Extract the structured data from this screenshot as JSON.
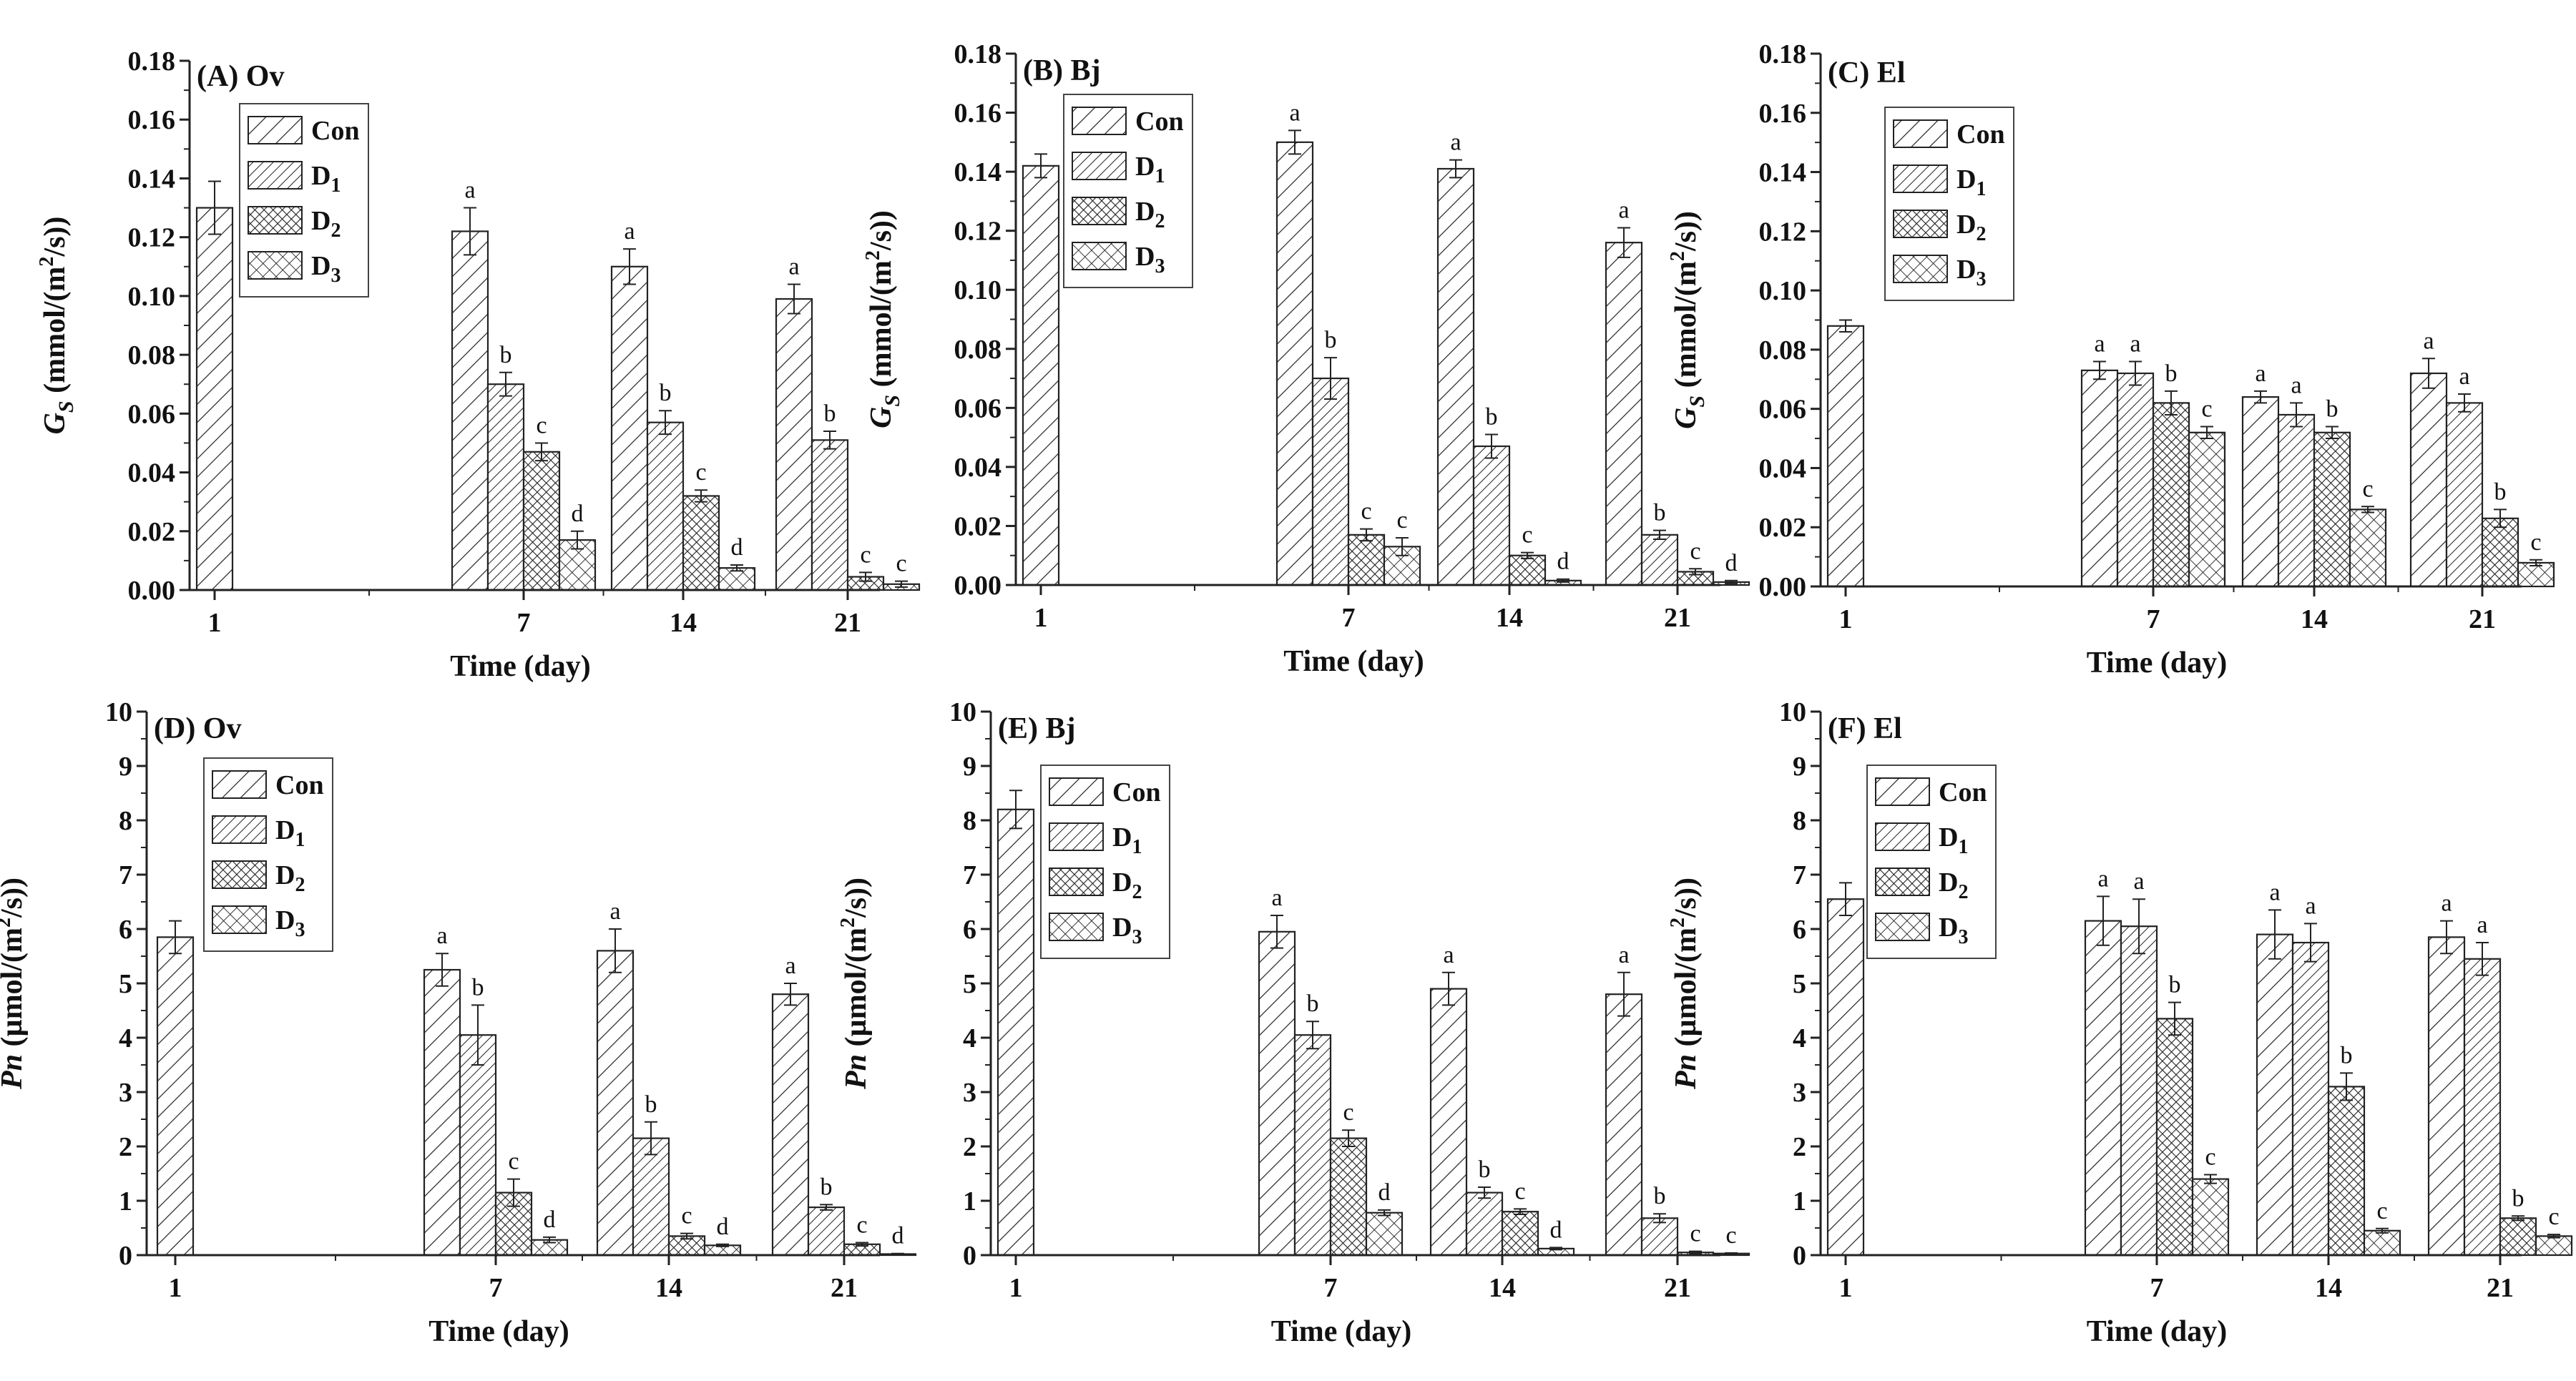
{
  "figure": {
    "x_axis_title": "Time (day)",
    "legend": [
      {
        "label": "Con",
        "pattern": "diag-sparse"
      },
      {
        "label": "D",
        "sub": "1",
        "pattern": "diag-dense"
      },
      {
        "label": "D",
        "sub": "2",
        "pattern": "cross-dense"
      },
      {
        "label": "D",
        "sub": "3",
        "pattern": "cross-sparse"
      }
    ]
  },
  "chart_data": [
    {
      "type": "bar",
      "panel": "(A)",
      "species": "Ov",
      "ylabel_italic": "G",
      "ylabel_sub": "S",
      "ylabel_unit": " (mmol/(m",
      "ylabel_sup": "2",
      "ylabel_tail": "/s))",
      "ylim": [
        0,
        0.18
      ],
      "yticks": [
        "0.00",
        "0.02",
        "0.04",
        "0.06",
        "0.08",
        "0.10",
        "0.12",
        "0.14",
        "0.16",
        "0.18"
      ],
      "categories": [
        "1",
        "7",
        "14",
        "21"
      ],
      "series": [
        {
          "name": "Con",
          "values": [
            0.13,
            0.122,
            0.11,
            0.099
          ],
          "errors": [
            0.009,
            0.008,
            0.006,
            0.005
          ],
          "letters": [
            "",
            "a",
            "a",
            "a"
          ]
        },
        {
          "name": "D1",
          "values": [
            null,
            0.07,
            0.057,
            0.051
          ],
          "errors": [
            null,
            0.004,
            0.004,
            0.003
          ],
          "letters": [
            "",
            "b",
            "b",
            "b"
          ]
        },
        {
          "name": "D2",
          "values": [
            null,
            0.047,
            0.032,
            0.0045
          ],
          "errors": [
            null,
            0.003,
            0.002,
            0.0015
          ],
          "letters": [
            "",
            "c",
            "c",
            "c"
          ]
        },
        {
          "name": "D3",
          "values": [
            null,
            0.017,
            0.0075,
            0.002
          ],
          "errors": [
            null,
            0.003,
            0.001,
            0.001
          ],
          "letters": [
            "",
            "d",
            "d",
            "c"
          ]
        }
      ]
    },
    {
      "type": "bar",
      "panel": "(B)",
      "species": "Bj",
      "ylabel_italic": "G",
      "ylabel_sub": "S",
      "ylabel_unit": " (mmol/(m",
      "ylabel_sup": "2",
      "ylabel_tail": "/s))",
      "ylim": [
        0,
        0.18
      ],
      "yticks": [
        "0.00",
        "0.02",
        "0.04",
        "0.06",
        "0.08",
        "0.10",
        "0.12",
        "0.14",
        "0.16",
        "0.18"
      ],
      "categories": [
        "1",
        "7",
        "14",
        "21"
      ],
      "series": [
        {
          "name": "Con",
          "values": [
            0.142,
            0.15,
            0.141,
            0.116
          ],
          "errors": [
            0.004,
            0.004,
            0.003,
            0.005
          ],
          "letters": [
            "",
            "a",
            "a",
            "a"
          ]
        },
        {
          "name": "D1",
          "values": [
            null,
            0.07,
            0.047,
            0.017
          ],
          "errors": [
            null,
            0.007,
            0.004,
            0.0015
          ],
          "letters": [
            "",
            "b",
            "b",
            "b"
          ]
        },
        {
          "name": "D2",
          "values": [
            null,
            0.017,
            0.01,
            0.0045
          ],
          "errors": [
            null,
            0.002,
            0.001,
            0.001
          ],
          "letters": [
            "",
            "c",
            "c",
            "c"
          ]
        },
        {
          "name": "D3",
          "values": [
            null,
            0.013,
            0.0015,
            0.001
          ],
          "errors": [
            null,
            0.003,
            0.0005,
            0.0005
          ],
          "letters": [
            "",
            "c",
            "d",
            "d"
          ]
        }
      ]
    },
    {
      "type": "bar",
      "panel": "(C)",
      "species": "El",
      "ylabel_italic": "G",
      "ylabel_sub": "S",
      "ylabel_unit": " (mmol/(m",
      "ylabel_sup": "2",
      "ylabel_tail": "/s))",
      "ylim": [
        0,
        0.18
      ],
      "yticks": [
        "0.00",
        "0.02",
        "0.04",
        "0.06",
        "0.08",
        "0.10",
        "0.12",
        "0.14",
        "0.16",
        "0.18"
      ],
      "categories": [
        "1",
        "7",
        "14",
        "21"
      ],
      "series": [
        {
          "name": "Con",
          "values": [
            0.088,
            0.073,
            0.064,
            0.072
          ],
          "errors": [
            0.002,
            0.003,
            0.002,
            0.005
          ],
          "letters": [
            "",
            "a",
            "a",
            "a"
          ]
        },
        {
          "name": "D1",
          "values": [
            null,
            0.072,
            0.058,
            0.062
          ],
          "errors": [
            null,
            0.004,
            0.004,
            0.003
          ],
          "letters": [
            "",
            "a",
            "a",
            "a"
          ]
        },
        {
          "name": "D2",
          "values": [
            null,
            0.062,
            0.052,
            0.023
          ],
          "errors": [
            null,
            0.004,
            0.002,
            0.003
          ],
          "letters": [
            "",
            "b",
            "b",
            "b"
          ]
        },
        {
          "name": "D3",
          "values": [
            null,
            0.052,
            0.026,
            0.008
          ],
          "errors": [
            null,
            0.002,
            0.001,
            0.001
          ],
          "letters": [
            "",
            "c",
            "c",
            "c"
          ]
        }
      ]
    },
    {
      "type": "bar",
      "panel": "(D)",
      "species": "Ov",
      "ylabel_italic": "Pn",
      "ylabel_sub": "",
      "ylabel_unit": " (µmol/(m",
      "ylabel_sup": "2",
      "ylabel_tail": "/s))",
      "ylim": [
        0,
        10
      ],
      "yticks": [
        "0",
        "1",
        "2",
        "3",
        "4",
        "5",
        "6",
        "7",
        "8",
        "9",
        "10"
      ],
      "categories": [
        "1",
        "7",
        "14",
        "21"
      ],
      "series": [
        {
          "name": "Con",
          "values": [
            5.85,
            5.25,
            5.6,
            4.8
          ],
          "errors": [
            0.3,
            0.3,
            0.4,
            0.2
          ],
          "letters": [
            "",
            "a",
            "a",
            "a"
          ]
        },
        {
          "name": "D1",
          "values": [
            null,
            4.05,
            2.15,
            0.88
          ],
          "errors": [
            null,
            0.55,
            0.3,
            0.05
          ],
          "letters": [
            "",
            "b",
            "b",
            "b"
          ]
        },
        {
          "name": "D2",
          "values": [
            null,
            1.15,
            0.35,
            0.2
          ],
          "errors": [
            null,
            0.25,
            0.05,
            0.03
          ],
          "letters": [
            "",
            "c",
            "c",
            "c"
          ]
        },
        {
          "name": "D3",
          "values": [
            null,
            0.28,
            0.18,
            0.02
          ],
          "errors": [
            null,
            0.05,
            0.02,
            0.01
          ],
          "letters": [
            "",
            "d",
            "d",
            "d"
          ]
        }
      ]
    },
    {
      "type": "bar",
      "panel": "(E)",
      "species": "Bj",
      "ylabel_italic": "Pn",
      "ylabel_sub": "",
      "ylabel_unit": " (µmol/(m",
      "ylabel_sup": "2",
      "ylabel_tail": "/s))",
      "ylim": [
        0,
        10
      ],
      "yticks": [
        "0",
        "1",
        "2",
        "3",
        "4",
        "5",
        "6",
        "7",
        "8",
        "9",
        "10"
      ],
      "categories": [
        "1",
        "7",
        "14",
        "21"
      ],
      "series": [
        {
          "name": "Con",
          "values": [
            8.2,
            5.95,
            4.9,
            4.8
          ],
          "errors": [
            0.35,
            0.3,
            0.3,
            0.4
          ],
          "letters": [
            "",
            "a",
            "a",
            "a"
          ]
        },
        {
          "name": "D1",
          "values": [
            null,
            4.05,
            1.15,
            0.68
          ],
          "errors": [
            null,
            0.25,
            0.1,
            0.08
          ],
          "letters": [
            "",
            "b",
            "b",
            "b"
          ]
        },
        {
          "name": "D2",
          "values": [
            null,
            2.15,
            0.8,
            0.05
          ],
          "errors": [
            null,
            0.15,
            0.05,
            0.02
          ],
          "letters": [
            "",
            "c",
            "c",
            "c"
          ]
        },
        {
          "name": "D3",
          "values": [
            null,
            0.78,
            0.12,
            0.03
          ],
          "errors": [
            null,
            0.05,
            0.02,
            0.01
          ],
          "letters": [
            "",
            "d",
            "d",
            "c"
          ]
        }
      ]
    },
    {
      "type": "bar",
      "panel": "(F)",
      "species": "El",
      "ylabel_italic": "Pn",
      "ylabel_sub": "",
      "ylabel_unit": " (µmol/(m",
      "ylabel_sup": "2",
      "ylabel_tail": "/s))",
      "ylim": [
        0,
        10
      ],
      "yticks": [
        "0",
        "1",
        "2",
        "3",
        "4",
        "5",
        "6",
        "7",
        "8",
        "9",
        "10"
      ],
      "categories": [
        "1",
        "7",
        "14",
        "21"
      ],
      "series": [
        {
          "name": "Con",
          "values": [
            6.55,
            6.15,
            5.9,
            5.85
          ],
          "errors": [
            0.3,
            0.45,
            0.45,
            0.3
          ],
          "letters": [
            "",
            "a",
            "a",
            "a"
          ]
        },
        {
          "name": "D1",
          "values": [
            null,
            6.05,
            5.75,
            5.45
          ],
          "errors": [
            null,
            0.5,
            0.35,
            0.3
          ],
          "letters": [
            "",
            "a",
            "a",
            "a"
          ]
        },
        {
          "name": "D2",
          "values": [
            null,
            4.35,
            3.1,
            0.68
          ],
          "errors": [
            null,
            0.3,
            0.25,
            0.04
          ],
          "letters": [
            "",
            "b",
            "b",
            "b"
          ]
        },
        {
          "name": "D3",
          "values": [
            null,
            1.4,
            0.45,
            0.35
          ],
          "errors": [
            null,
            0.08,
            0.04,
            0.03
          ],
          "letters": [
            "",
            "c",
            "c",
            "c"
          ]
        }
      ]
    }
  ]
}
